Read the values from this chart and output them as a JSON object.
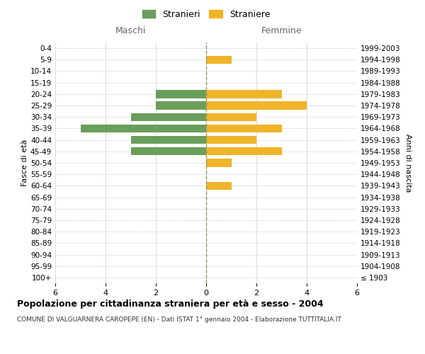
{
  "age_groups": [
    "100+",
    "95-99",
    "90-94",
    "85-89",
    "80-84",
    "75-79",
    "70-74",
    "65-69",
    "60-64",
    "55-59",
    "50-54",
    "45-49",
    "40-44",
    "35-39",
    "30-34",
    "25-29",
    "20-24",
    "15-19",
    "10-14",
    "5-9",
    "0-4"
  ],
  "birth_years": [
    "≤ 1903",
    "1904-1908",
    "1909-1913",
    "1914-1918",
    "1919-1923",
    "1924-1928",
    "1929-1933",
    "1934-1938",
    "1939-1943",
    "1944-1948",
    "1949-1953",
    "1954-1958",
    "1959-1963",
    "1964-1968",
    "1969-1973",
    "1974-1978",
    "1979-1983",
    "1984-1988",
    "1989-1993",
    "1994-1998",
    "1999-2003"
  ],
  "males": [
    0,
    0,
    0,
    0,
    0,
    0,
    0,
    0,
    0,
    0,
    0,
    3,
    3,
    5,
    3,
    2,
    2,
    0,
    0,
    0,
    0
  ],
  "females": [
    0,
    0,
    0,
    0,
    0,
    0,
    0,
    0,
    1,
    0,
    1,
    3,
    2,
    3,
    2,
    4,
    3,
    0,
    0,
    1,
    0
  ],
  "male_color": "#6a9e5b",
  "female_color": "#f0b429",
  "title": "Popolazione per cittadinanza straniera per età e sesso - 2004",
  "subtitle": "COMUNE DI VALGUARNERA CAROPEPE (EN) - Dati ISTAT 1° gennaio 2004 - Elaborazione TUTTITALIA.IT",
  "xlabel_left": "Maschi",
  "xlabel_right": "Femmine",
  "ylabel_left": "Fasce di età",
  "ylabel_right": "Anni di nascita",
  "legend_male": "Stranieri",
  "legend_female": "Straniere",
  "xlim": 6,
  "background_color": "#ffffff",
  "grid_color": "#cccccc"
}
